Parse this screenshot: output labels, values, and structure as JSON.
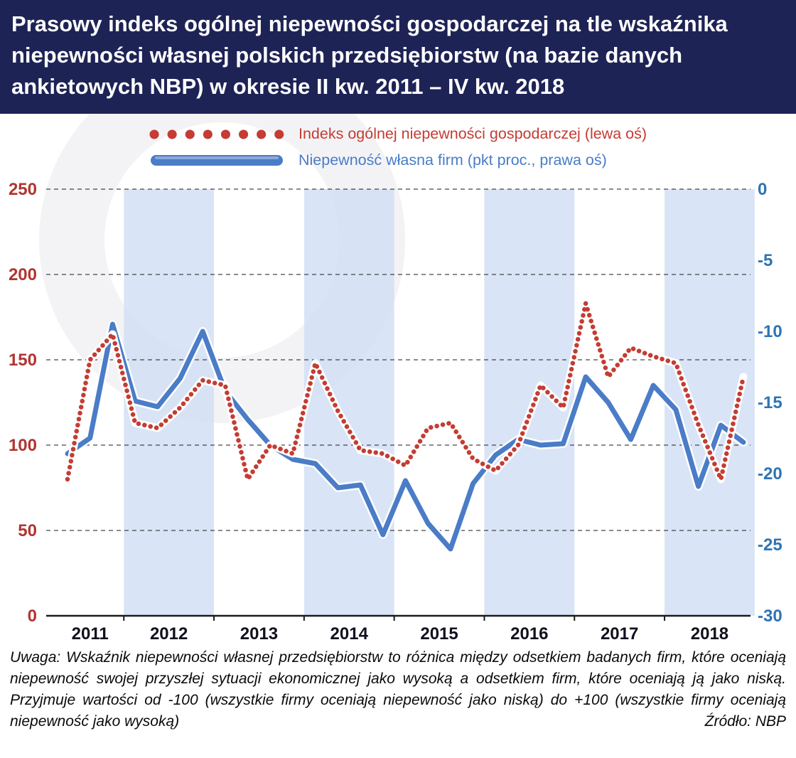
{
  "title": "Prasowy indeks ogólnej niepewności gospodarczej na tle wskaźnika niepewności własnej polskich przedsiębiorstw (na bazie danych ankietowych NBP) w okresie II kw. 2011 – IV kw. 2018",
  "legend": {
    "series1": "Indeks ogólnej niepewności gospodarczej (lewa oś)",
    "series2": "Niepewność własna firm (pkt proc., prawa oś)"
  },
  "note": "Uwaga: Wskaźnik niepewności własnej przedsiębiorstw to różnica między odsetkiem badanych firm, które oceniają niepewność swojej przyszłej sytuacji ekonomicznej jako wysoką a odsetkiem firm, które oceniają ją jako niską. Przyjmuje wartości od -100 (wszystkie firmy oceniają niepewność jako niską) do +100 (wszystkie firmy oceniają niepewność jako wysoką)",
  "source": "Źródło: NBP",
  "colors": {
    "header_bg": "#1e2356",
    "header_text": "#ffffff",
    "red": "#c43c33",
    "blue": "#4a7cc7",
    "left_axis": "#b03531",
    "right_axis": "#2e74b5",
    "band": "#cfdef4",
    "grid": "#1a1a1a"
  },
  "chart_data": {
    "type": "line",
    "title": "Prasowy indeks ogólnej niepewności gospodarczej na tle wskaźnika niepewności własnej polskich przedsiębiorstw (na bazie danych ankietowych NBP) w okresie II kw. 2011 – IV kw. 2018",
    "x_quarters": [
      "2011Q2",
      "2011Q3",
      "2011Q4",
      "2012Q1",
      "2012Q2",
      "2012Q3",
      "2012Q4",
      "2013Q1",
      "2013Q2",
      "2013Q3",
      "2013Q4",
      "2014Q1",
      "2014Q2",
      "2014Q3",
      "2014Q4",
      "2015Q1",
      "2015Q2",
      "2015Q3",
      "2015Q4",
      "2016Q1",
      "2016Q2",
      "2016Q3",
      "2016Q4",
      "2017Q1",
      "2017Q2",
      "2017Q3",
      "2017Q4",
      "2018Q1",
      "2018Q2",
      "2018Q3",
      "2018Q4"
    ],
    "x_year_labels": [
      "2011",
      "2012",
      "2013",
      "2014",
      "2015",
      "2016",
      "2017",
      "2018"
    ],
    "shaded_years": [
      "2012",
      "2014",
      "2016",
      "2018"
    ],
    "band_color": "#cfdef4",
    "grid": "horizontal-dashed",
    "legend_position": "top",
    "left_axis": {
      "label": "Indeks ogólnej niepewności gospodarczej (lewa oś)",
      "ticks": [
        0,
        50,
        100,
        150,
        200,
        250
      ],
      "range": [
        0,
        250
      ],
      "color": "#b03531"
    },
    "right_axis": {
      "label": "Niepewność własna firm (pkt proc., prawa oś)",
      "ticks": [
        0,
        -5,
        -10,
        -15,
        -20,
        -25,
        -30
      ],
      "range": [
        -30,
        0
      ],
      "color": "#2e74b5"
    },
    "series": [
      {
        "name": "Indeks ogólnej niepewności gospodarczej (lewa oś)",
        "axis": "left",
        "style": "dotted",
        "color": "#c43c33",
        "values": [
          80,
          150,
          165,
          113,
          110,
          122,
          138,
          135,
          80,
          100,
          95,
          148,
          120,
          97,
          95,
          88,
          110,
          113,
          92,
          85,
          100,
          135,
          122,
          183,
          140,
          157,
          152,
          148,
          112,
          80,
          140
        ]
      },
      {
        "name": "Niepewność własna firm (pkt proc., prawa oś)",
        "axis": "right",
        "style": "solid",
        "color": "#4a7cc7",
        "values": [
          -18.6,
          -17.5,
          -9.5,
          -14.9,
          -15.3,
          -13.3,
          -10.0,
          -14.2,
          -16.2,
          -18.0,
          -19.0,
          -19.3,
          -21.0,
          -20.8,
          -24.3,
          -20.5,
          -23.5,
          -25.3,
          -20.7,
          -18.7,
          -17.6,
          -18.0,
          -17.9,
          -13.2,
          -15.0,
          -17.6,
          -13.8,
          -15.5,
          -20.9,
          -16.6,
          -17.8
        ]
      }
    ]
  }
}
